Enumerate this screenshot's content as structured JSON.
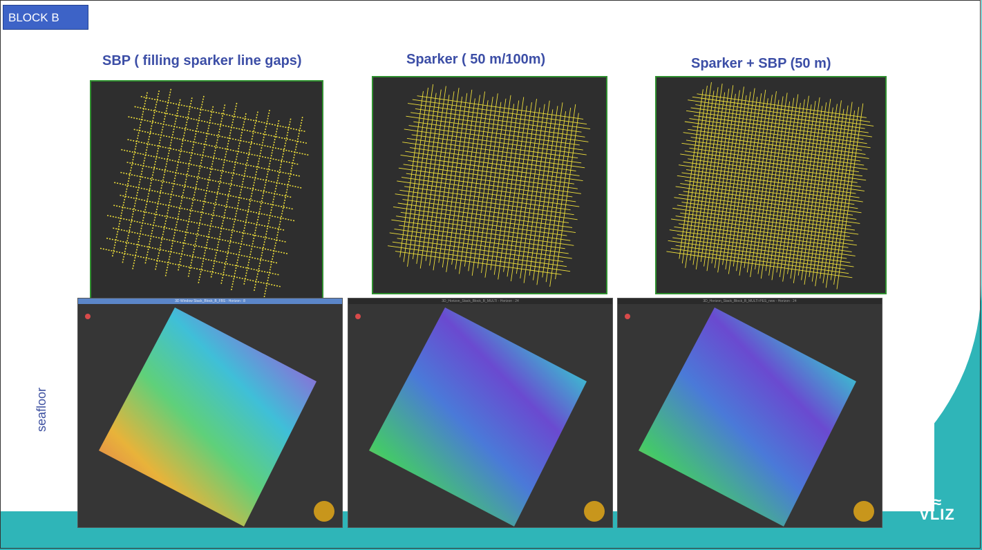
{
  "slide": {
    "block_label": "BLOCK B",
    "side_label": "seafloor"
  },
  "columns": [
    {
      "title": "SBP ( filling sparker line gaps)"
    },
    {
      "title": "Sparker ( 50 m/100m)"
    },
    {
      "title": "Sparker + SBP (50 m)"
    }
  ],
  "surface_windows": [
    {
      "title": "3D Window Stack_Block_B_FBS - Horizon : 8"
    },
    {
      "title": "3D_Horizon_Stack_Block_B_MULTI - Horizon : 24"
    },
    {
      "title": "3D_Horizon_Stack_Block_B_MULTI-PES_new - Horizon : 24"
    }
  ],
  "logo": {
    "text": "VLIZ",
    "icon": "wave-icon"
  },
  "colors": {
    "teal": "#2fb5b8",
    "title_blue": "#3c4ea6",
    "tag_blue": "#3d63c7",
    "track_yellow": "#f2e23c"
  }
}
